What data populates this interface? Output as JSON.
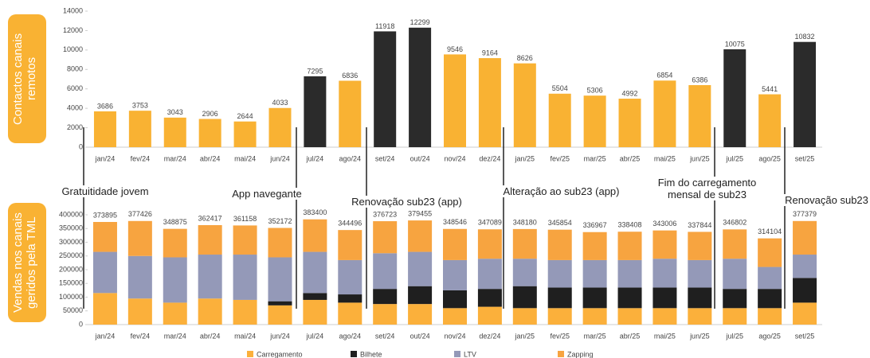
{
  "chart_data": [
    {
      "type": "bar",
      "title": "Contactos canais remotos",
      "categories": [
        "jan/24",
        "fev/24",
        "mar/24",
        "abr/24",
        "mai/24",
        "jun/24",
        "jul/24",
        "ago/24",
        "set/24",
        "out/24",
        "nov/24",
        "dez/24",
        "jan/25",
        "fev/25",
        "mar/25",
        "abr/25",
        "mai/25",
        "jun/25",
        "jul/25",
        "ago/25",
        "set/25"
      ],
      "values": [
        3686,
        3753,
        3043,
        2906,
        2644,
        4033,
        7295,
        6836,
        11918,
        12299,
        9546,
        9164,
        8626,
        5504,
        5306,
        4992,
        6854,
        6386,
        10075,
        5441,
        10832
      ],
      "colors": [
        "#f9b233",
        "#f9b233",
        "#f9b233",
        "#f9b233",
        "#f9b233",
        "#f9b233",
        "#2b2b2b",
        "#f9b233",
        "#2b2b2b",
        "#2b2b2b",
        "#f9b233",
        "#f9b233",
        "#f9b233",
        "#f9b233",
        "#f9b233",
        "#f9b233",
        "#f9b233",
        "#f9b233",
        "#2b2b2b",
        "#f9b233",
        "#2b2b2b"
      ],
      "ylim": [
        0,
        14000
      ],
      "yticks": [
        0,
        2000,
        4000,
        6000,
        8000,
        10000,
        12000,
        14000
      ],
      "annotations": [
        "Gratuitidade jovem",
        "App navegante",
        "Renovação sub23 (app)",
        "Alteração ao sub23 (app)",
        "Fim do carregamento mensal de sub23",
        "Renovação sub23"
      ]
    },
    {
      "type": "stacked_bar",
      "title": "Vendas nos canais geridos pela TML",
      "categories": [
        "jan/24",
        "fev/24",
        "mar/24",
        "abr/24",
        "mai/24",
        "jun/24",
        "jul/24",
        "ago/24",
        "set/24",
        "out/24",
        "nov/24",
        "dez/24",
        "jan/25",
        "fev/25",
        "mar/25",
        "abr/25",
        "mai/25",
        "jun/25",
        "jul/25",
        "ago/25",
        "set/25"
      ],
      "series": [
        {
          "name": "Carregamento",
          "color": "#fbb03b",
          "values": [
            115000,
            95000,
            80000,
            95000,
            90000,
            70000,
            90000,
            80000,
            75000,
            75000,
            60000,
            65000,
            60000,
            60000,
            60000,
            60000,
            60000,
            60000,
            60000,
            60000,
            80000
          ]
        },
        {
          "name": "Bilhete",
          "color": "#1f1f1f",
          "values": [
            0,
            0,
            0,
            0,
            0,
            15000,
            25000,
            30000,
            55000,
            65000,
            65000,
            65000,
            80000,
            75000,
            75000,
            75000,
            75000,
            75000,
            70000,
            70000,
            90000
          ]
        },
        {
          "name": "LTV",
          "color": "#9499b8",
          "values": [
            150000,
            155000,
            165000,
            160000,
            165000,
            160000,
            150000,
            125000,
            130000,
            125000,
            110000,
            110000,
            100000,
            100000,
            100000,
            100000,
            105000,
            100000,
            110000,
            80000,
            85000
          ]
        },
        {
          "name": "Zapping",
          "color": "#f7a440",
          "values": [
            108895,
            127426,
            103875,
            107417,
            106158,
            107172,
            118400,
            109496,
            116723,
            114455,
            113546,
            107089,
            108180,
            110854,
            101967,
            103408,
            103006,
            102844,
            106802,
            104104,
            122379
          ]
        }
      ],
      "totals": [
        373895,
        377426,
        348875,
        362417,
        361158,
        352172,
        383400,
        344496,
        376723,
        379455,
        348546,
        347089,
        348180,
        345854,
        336967,
        338408,
        343006,
        337844,
        346802,
        314104,
        377379
      ],
      "ylim": [
        0,
        400000
      ],
      "yticks": [
        0,
        50000,
        100000,
        150000,
        200000,
        250000,
        300000,
        350000,
        400000
      ]
    }
  ]
}
